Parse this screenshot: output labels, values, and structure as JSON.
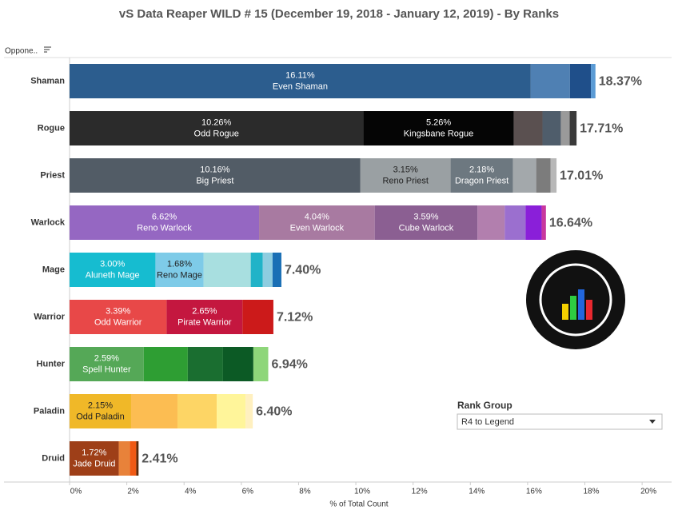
{
  "chart_data": {
    "type": "stacked_bar_horizontal",
    "title": "vS Data Reaper WILD # 15 (December 19, 2018 - January 12, 2019) - By Ranks",
    "row_header": "Oppone..",
    "x_label": "% of Total Count",
    "xlim": [
      0,
      20.22
    ],
    "xticks": [
      {
        "value": 0,
        "label": "0%"
      },
      {
        "value": 2,
        "label": "2%"
      },
      {
        "value": 4,
        "label": "4%"
      },
      {
        "value": 6,
        "label": "6%"
      },
      {
        "value": 8,
        "label": "8%"
      },
      {
        "value": 10,
        "label": "10%"
      },
      {
        "value": 12,
        "label": "12%"
      },
      {
        "value": 14,
        "label": "14%"
      },
      {
        "value": 16,
        "label": "16%"
      },
      {
        "value": 18,
        "label": "18%"
      },
      {
        "value": 20,
        "label": "20%"
      }
    ],
    "grid": false,
    "filter": {
      "title": "Rank Group",
      "value": "R4 to Legend"
    },
    "bars": [
      {
        "category": "Shaman",
        "total": 18.37,
        "total_label": "18.37%",
        "segments": [
          {
            "name": "Even Shaman",
            "value": 16.11,
            "value_label": "16.11%",
            "color": "#2c5d8e"
          },
          {
            "value": 1.37,
            "color": "#4f80b3"
          },
          {
            "value": 0.73,
            "color": "#1f4f8a"
          },
          {
            "value": 0.16,
            "color": "#5b9bd5"
          }
        ]
      },
      {
        "category": "Rogue",
        "total": 17.71,
        "total_label": "17.71%",
        "segments": [
          {
            "name": "Odd Rogue",
            "value": 10.26,
            "value_label": "10.26%",
            "color": "#2b2b2b"
          },
          {
            "name": "Kingsbane Rogue",
            "value": 5.26,
            "value_label": "5.26%",
            "color": "#050505"
          },
          {
            "value": 1.0,
            "color": "#5a5050"
          },
          {
            "value": 0.64,
            "color": "#4f5d6b"
          },
          {
            "value": 0.31,
            "color": "#9a9a9a"
          },
          {
            "value": 0.24,
            "color": "#3a3a3a"
          }
        ]
      },
      {
        "category": "Priest",
        "total": 17.01,
        "total_label": "17.01%",
        "segments": [
          {
            "name": "Big Priest",
            "value": 10.16,
            "value_label": "10.16%",
            "color": "#525c66"
          },
          {
            "name": "Reno Priest",
            "value": 3.15,
            "value_label": "3.15%",
            "color": "#9aa0a3"
          },
          {
            "name": "Dragon Priest",
            "value": 2.18,
            "value_label": "2.18%",
            "color": "#6d7880"
          },
          {
            "value": 0.81,
            "color": "#a3a8ab"
          },
          {
            "value": 0.5,
            "color": "#7c7c7c"
          },
          {
            "value": 0.21,
            "color": "#b8b8b8"
          }
        ]
      },
      {
        "category": "Warlock",
        "total": 16.64,
        "total_label": "16.64%",
        "segments": [
          {
            "name": "Reno Warlock",
            "value": 6.62,
            "value_label": "6.62%",
            "color": "#9567c2"
          },
          {
            "name": "Even Warlock",
            "value": 4.04,
            "value_label": "4.04%",
            "color": "#a87aa1"
          },
          {
            "name": "Cube Warlock",
            "value": 3.59,
            "value_label": "3.59%",
            "color": "#8b5f92"
          },
          {
            "value": 0.95,
            "color": "#b27fae"
          },
          {
            "value": 0.73,
            "color": "#9b6fcf"
          },
          {
            "value": 0.56,
            "color": "#8a1fd9"
          },
          {
            "value": 0.15,
            "color": "#c8389e"
          }
        ]
      },
      {
        "category": "Mage",
        "total": 7.4,
        "total_label": "7.40%",
        "segments": [
          {
            "name": "Aluneth Mage",
            "value": 3.0,
            "value_label": "3.00%",
            "color": "#16bcd0"
          },
          {
            "name": "Reno Mage",
            "value": 1.68,
            "value_label": "1.68%",
            "color": "#7ecbe8"
          },
          {
            "value": 1.65,
            "color": "#a8dfe0"
          },
          {
            "value": 0.42,
            "color": "#21b3c8"
          },
          {
            "value": 0.34,
            "color": "#8ecde0"
          },
          {
            "value": 0.31,
            "color": "#1a6fb5"
          }
        ]
      },
      {
        "category": "Warrior",
        "total": 7.12,
        "total_label": "7.12%",
        "segments": [
          {
            "name": "Odd Warrior",
            "value": 3.39,
            "value_label": "3.39%",
            "color": "#e84848"
          },
          {
            "name": "Pirate Warrior",
            "value": 2.65,
            "value_label": "2.65%",
            "color": "#c4173f"
          },
          {
            "value": 1.08,
            "color": "#cc1a1a"
          }
        ]
      },
      {
        "category": "Hunter",
        "total": 6.94,
        "total_label": "6.94%",
        "segments": [
          {
            "name": "Spell Hunter",
            "value": 2.59,
            "value_label": "2.59%",
            "color": "#55a857"
          },
          {
            "value": 1.54,
            "color": "#2e9e33"
          },
          {
            "value": 1.23,
            "color": "#1a6e30"
          },
          {
            "value": 1.06,
            "color": "#0c5a25"
          },
          {
            "value": 0.52,
            "color": "#8ed67a"
          }
        ]
      },
      {
        "category": "Paladin",
        "total": 6.4,
        "total_label": "6.40%",
        "segments": [
          {
            "name": "Odd Paladin",
            "value": 2.15,
            "value_label": "2.15%",
            "color": "#f0b828"
          },
          {
            "value": 1.62,
            "color": "#fcbd52"
          },
          {
            "value": 1.37,
            "color": "#fdd565"
          },
          {
            "value": 1.01,
            "color": "#fff59a"
          },
          {
            "value": 0.25,
            "color": "#fff0c0"
          }
        ]
      },
      {
        "category": "Druid",
        "total": 2.41,
        "total_label": "2.41%",
        "segments": [
          {
            "name": "Jade Druid",
            "value": 1.72,
            "value_label": "1.72%",
            "color": "#9e3f18"
          },
          {
            "value": 0.39,
            "color": "#e8823a"
          },
          {
            "value": 0.22,
            "color": "#f05a14"
          },
          {
            "value": 0.08,
            "color": "#5c2a0a"
          }
        ]
      }
    ]
  }
}
